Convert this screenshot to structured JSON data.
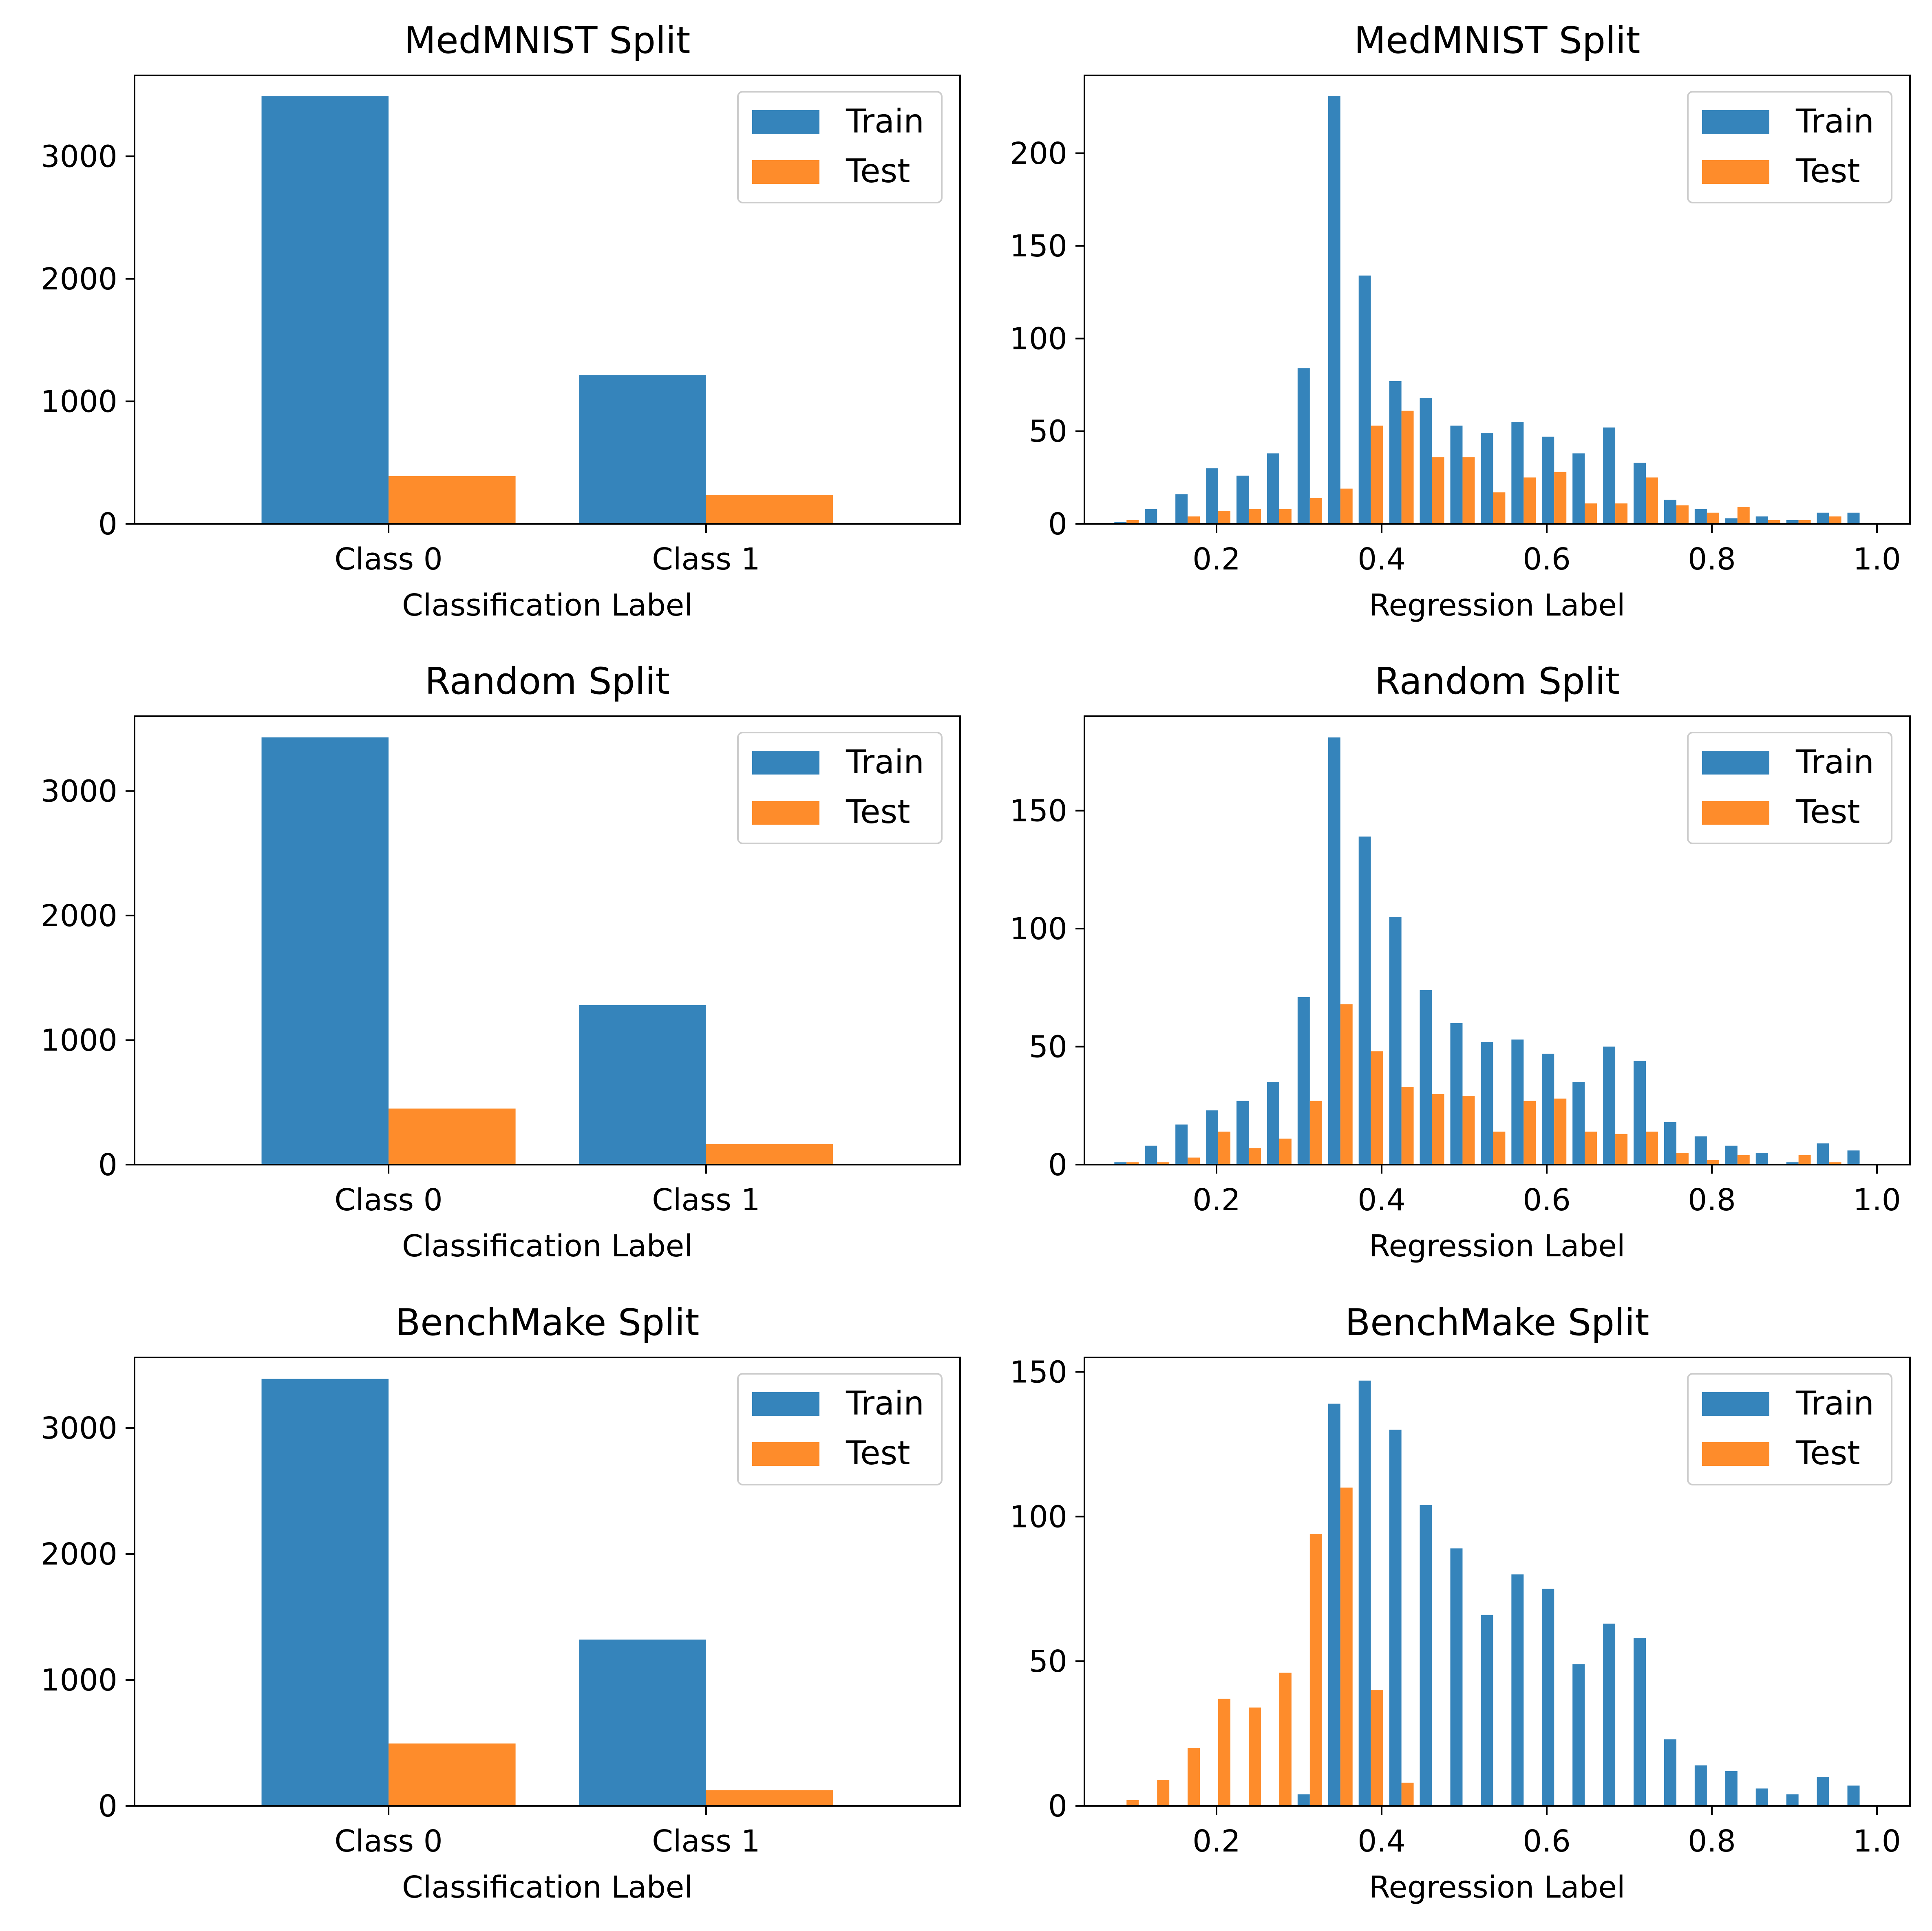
{
  "colors": {
    "train": "#3584bb",
    "test": "#fe8c2b"
  },
  "legend": {
    "train_label": "Train",
    "test_label": "Test"
  },
  "chart_data": [
    {
      "type": "bar",
      "title": "MedMNIST Split",
      "xlabel": "Classification Label",
      "ylabel": "",
      "categories": [
        "Class 0",
        "Class 1"
      ],
      "series": [
        {
          "name": "Train",
          "values": [
            3490,
            1214
          ]
        },
        {
          "name": "Test",
          "values": [
            390,
            234
          ]
        }
      ],
      "ylim": [
        0,
        3660
      ],
      "yticks": [
        0,
        1000,
        2000,
        3000
      ],
      "legend_position": "upper right"
    },
    {
      "type": "bar",
      "title": "MedMNIST Split",
      "xlabel": "Regression Label",
      "ylabel": "",
      "x": [
        0.091,
        0.128,
        0.165,
        0.202,
        0.239,
        0.276,
        0.313,
        0.35,
        0.387,
        0.424,
        0.461,
        0.498,
        0.535,
        0.572,
        0.609,
        0.646,
        0.683,
        0.72,
        0.757,
        0.794,
        0.831,
        0.868,
        0.905,
        0.942,
        0.979
      ],
      "series": [
        {
          "name": "Train",
          "values": [
            1,
            8,
            16,
            30,
            26,
            38,
            84,
            231,
            134,
            77,
            68,
            53,
            49,
            55,
            47,
            38,
            52,
            33,
            13,
            8,
            3,
            4,
            2,
            6,
            6
          ]
        },
        {
          "name": "Test",
          "values": [
            2,
            0,
            4,
            7,
            8,
            8,
            14,
            19,
            53,
            61,
            36,
            36,
            17,
            25,
            28,
            11,
            11,
            25,
            10,
            6,
            9,
            2,
            2,
            4,
            0
          ]
        }
      ],
      "xlim": [
        0.04,
        1.04
      ],
      "xticks": [
        "0.2",
        "0.4",
        "0.6",
        "0.8",
        "1.0"
      ],
      "ylim": [
        0,
        242
      ],
      "yticks": [
        0,
        50,
        100,
        150,
        200
      ],
      "legend_position": "upper right"
    },
    {
      "type": "bar",
      "title": "Random Split",
      "xlabel": "Classification Label",
      "ylabel": "",
      "categories": [
        "Class 0",
        "Class 1"
      ],
      "series": [
        {
          "name": "Train",
          "values": [
            3430,
            1280
          ]
        },
        {
          "name": "Test",
          "values": [
            450,
            165
          ]
        }
      ],
      "ylim": [
        0,
        3600
      ],
      "yticks": [
        0,
        1000,
        2000,
        3000
      ],
      "legend_position": "upper right"
    },
    {
      "type": "bar",
      "title": "Random Split",
      "xlabel": "Regression Label",
      "ylabel": "",
      "x": [
        0.091,
        0.128,
        0.165,
        0.202,
        0.239,
        0.276,
        0.313,
        0.35,
        0.387,
        0.424,
        0.461,
        0.498,
        0.535,
        0.572,
        0.609,
        0.646,
        0.683,
        0.72,
        0.757,
        0.794,
        0.831,
        0.868,
        0.905,
        0.942,
        0.979
      ],
      "series": [
        {
          "name": "Train",
          "values": [
            1,
            8,
            17,
            23,
            27,
            35,
            71,
            181,
            139,
            105,
            74,
            60,
            52,
            53,
            47,
            35,
            50,
            44,
            18,
            12,
            8,
            5,
            1,
            9,
            6
          ]
        },
        {
          "name": "Test",
          "values": [
            1,
            1,
            3,
            14,
            7,
            11,
            27,
            68,
            48,
            33,
            30,
            29,
            14,
            27,
            28,
            14,
            13,
            14,
            5,
            2,
            4,
            0,
            4,
            1,
            0
          ]
        }
      ],
      "xlim": [
        0.04,
        1.04
      ],
      "xticks": [
        "0.2",
        "0.4",
        "0.6",
        "0.8",
        "1.0"
      ],
      "ylim": [
        0,
        190
      ],
      "yticks": [
        0,
        50,
        100,
        150
      ],
      "legend_position": "upper right"
    },
    {
      "type": "bar",
      "title": "BenchMake Split",
      "xlabel": "Classification Label",
      "ylabel": "",
      "categories": [
        "Class 0",
        "Class 1"
      ],
      "series": [
        {
          "name": "Train",
          "values": [
            3390,
            1320
          ]
        },
        {
          "name": "Test",
          "values": [
            495,
            125
          ]
        }
      ],
      "ylim": [
        0,
        3560
      ],
      "yticks": [
        0,
        1000,
        2000,
        3000
      ],
      "legend_position": "upper right"
    },
    {
      "type": "bar",
      "title": "BenchMake Split",
      "xlabel": "Regression Label",
      "ylabel": "",
      "x": [
        0.091,
        0.128,
        0.165,
        0.202,
        0.239,
        0.276,
        0.313,
        0.35,
        0.387,
        0.424,
        0.461,
        0.498,
        0.535,
        0.572,
        0.609,
        0.646,
        0.683,
        0.72,
        0.757,
        0.794,
        0.831,
        0.868,
        0.905,
        0.942,
        0.979
      ],
      "series": [
        {
          "name": "Train",
          "values": [
            0,
            0,
            0,
            0,
            0,
            0,
            4,
            139,
            147,
            130,
            104,
            89,
            66,
            80,
            75,
            49,
            63,
            58,
            23,
            14,
            12,
            6,
            4,
            10,
            7
          ]
        },
        {
          "name": "Test",
          "values": [
            2,
            9,
            20,
            37,
            34,
            46,
            94,
            110,
            40,
            8,
            0,
            0,
            0,
            0,
            0,
            0,
            0,
            0,
            0,
            0,
            0,
            0,
            0,
            0,
            0
          ]
        }
      ],
      "xlim": [
        0.04,
        1.04
      ],
      "xticks": [
        "0.2",
        "0.4",
        "0.6",
        "0.8",
        "1.0"
      ],
      "ylim": [
        0,
        155
      ],
      "yticks": [
        0,
        50,
        100,
        150
      ],
      "legend_position": "upper right"
    }
  ]
}
